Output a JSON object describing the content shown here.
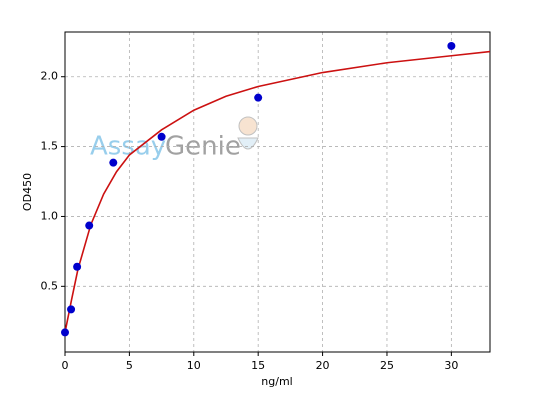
{
  "chart_data": {
    "type": "scatter",
    "xlabel": "ng/ml",
    "ylabel": "OD450",
    "watermark": [
      "Assay",
      "Genie"
    ],
    "xlim": [
      0,
      33
    ],
    "ylim": [
      0.03,
      2.32
    ],
    "xticks": [
      0,
      5,
      10,
      15,
      20,
      25,
      30
    ],
    "yticks": [
      0.5,
      {
        "value": 1,
        "label": "1.0"
      },
      1.5,
      {
        "value": 2,
        "label": "2.0"
      }
    ],
    "grid": true,
    "series": [
      {
        "type": "scatter",
        "color": "#0000cc",
        "x": [
          0,
          0.47,
          0.94,
          1.88,
          3.75,
          7.5,
          15,
          30
        ],
        "values": [
          0.17,
          0.335,
          0.64,
          0.935,
          1.385,
          1.57,
          1.85,
          2.22
        ]
      },
      {
        "type": "line",
        "color": "#cc1111",
        "x": [
          0,
          0.5,
          1,
          2,
          3,
          4,
          5,
          7.5,
          10,
          12.5,
          15,
          20,
          25,
          30,
          33
        ],
        "values": [
          0.17,
          0.4,
          0.62,
          0.94,
          1.16,
          1.32,
          1.44,
          1.62,
          1.76,
          1.86,
          1.93,
          2.03,
          2.1,
          2.15,
          2.18
        ]
      }
    ]
  }
}
